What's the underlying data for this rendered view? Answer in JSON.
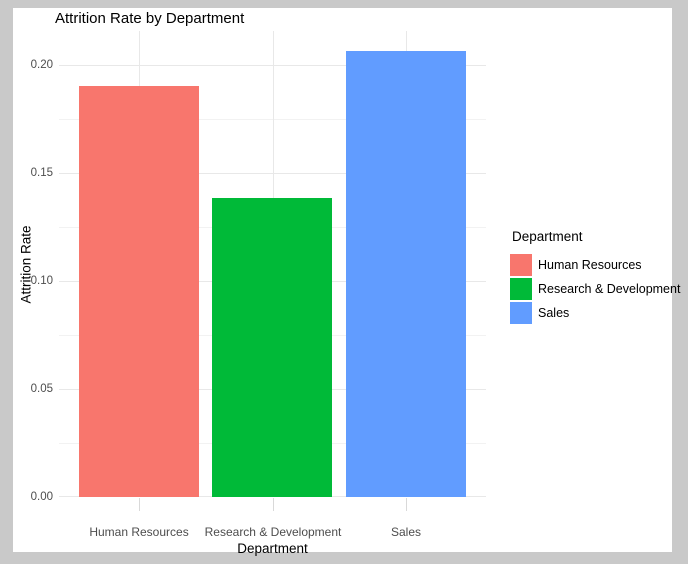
{
  "title": "Attrition Rate by Department",
  "chart_data": {
    "type": "bar",
    "title": "Attrition Rate by Department",
    "xlabel": "Department",
    "ylabel": "Attrition Rate",
    "categories": [
      "Human Resources",
      "Research & Development",
      "Sales"
    ],
    "values": [
      0.1901,
      0.1384,
      0.2063
    ],
    "bar_colors": [
      "#F8766D",
      "#00BA38",
      "#619CFF"
    ],
    "ylim": [
      0,
      0.2157
    ],
    "yticks": [
      0,
      0.05,
      0.1,
      0.15,
      0.2
    ],
    "ytick_labels": [
      "0.00",
      "0.05",
      "0.10",
      "0.15",
      "0.20"
    ],
    "minor_yticks": [
      0.025,
      0.075,
      0.125,
      0.175
    ],
    "grid": true,
    "legend_position": "right"
  },
  "legend": {
    "title": "Department",
    "entries": [
      {
        "label": "Human Resources",
        "color": "#F8766D"
      },
      {
        "label": "Research & Development",
        "color": "#00BA38"
      },
      {
        "label": "Sales",
        "color": "#619CFF"
      }
    ]
  },
  "colors": {
    "window_border": "#C9C9C9",
    "panel_background": "#FFFFFF",
    "grid_major": "#E8E8E8",
    "grid_minor": "#F2F2F2",
    "tick": "#D9D9D9",
    "axis_text": "#4D4D4D",
    "title_text": "#000000"
  }
}
